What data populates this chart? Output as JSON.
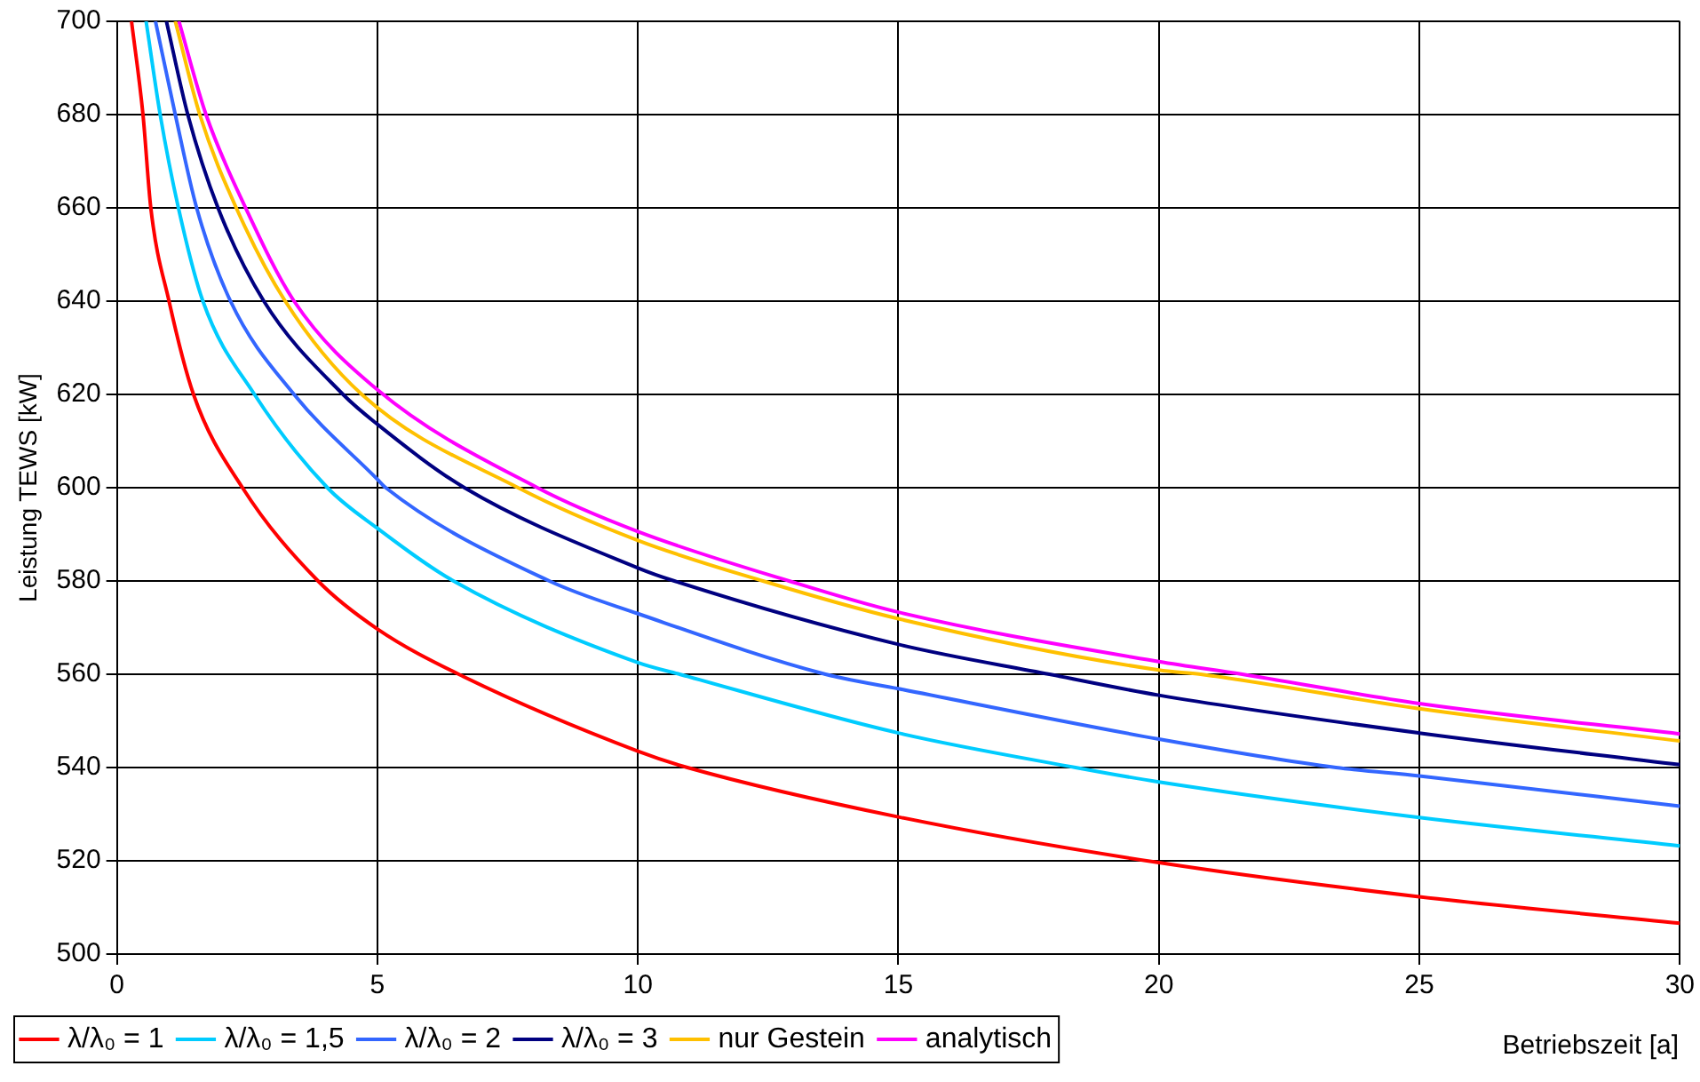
{
  "chart_data": {
    "type": "line",
    "xlabel": "Betriebszeit [a]",
    "ylabel": "Leistung TEWS [kW]",
    "xlim": [
      0,
      30
    ],
    "xticks": [
      0,
      5,
      10,
      15,
      20,
      25,
      30
    ],
    "ylim": [
      500,
      700
    ],
    "yticks": [
      500,
      520,
      540,
      560,
      580,
      600,
      620,
      640,
      660,
      680,
      700
    ],
    "grid": true,
    "legend": "bottom left",
    "marker": "none",
    "line_style": "solid",
    "series": [
      {
        "name": "λ/λ₀ = 1",
        "color": "#ff0000",
        "x": [
          0.28,
          0.5,
          0.65,
          1.0,
          1.47,
          2.41,
          3.86,
          5,
          6.56,
          10,
          10.95,
          15,
          20,
          25,
          30
        ],
        "values": [
          700,
          680,
          660,
          640,
          620,
          600,
          580,
          569.7,
          560,
          543.5,
          540,
          529.4,
          519.6,
          512.3,
          506.6
        ]
      },
      {
        "name": "λ/λ₀ = 1,5",
        "color": "#00ccff",
        "x": [
          0.56,
          0.83,
          1.18,
          1.65,
          2.64,
          4.04,
          5,
          6.46,
          10,
          10.8,
          15,
          18.4,
          20,
          25,
          30
        ],
        "values": [
          700,
          680,
          660,
          640,
          620,
          600,
          591.3,
          580,
          562.5,
          560,
          547.4,
          540,
          536.9,
          529.3,
          523.2
        ]
      },
      {
        "name": "λ/λ₀ = 2",
        "color": "#3366ff",
        "x": [
          0.74,
          1.12,
          1.53,
          2.18,
          3.4,
          5,
          5.16,
          8.3,
          10,
          13.6,
          15,
          20,
          23.4,
          25,
          30
        ],
        "values": [
          700,
          680,
          660,
          640,
          620,
          601.8,
          600,
          580,
          573,
          560,
          556.9,
          546.1,
          540,
          538.2,
          531.7
        ]
      },
      {
        "name": "λ/λ₀ = 3",
        "color": "#000080",
        "x": [
          0.95,
          1.36,
          1.94,
          2.82,
          4.34,
          5,
          6.67,
          10,
          10.7,
          15,
          17.9,
          20,
          25,
          30
        ],
        "values": [
          700,
          680,
          660,
          640,
          620,
          613.6,
          600,
          582.8,
          580,
          566.4,
          560,
          555.5,
          547.4,
          540.6
        ]
      },
      {
        "name": "nur Gestein",
        "color": "#ffc000",
        "x": [
          1.12,
          1.59,
          2.29,
          3.23,
          4.7,
          7.7,
          10,
          12.4,
          15,
          20,
          20.8,
          25,
          30
        ],
        "values": [
          700,
          680,
          660,
          640,
          620,
          600,
          588.7,
          580,
          571.9,
          560.9,
          560,
          552.6,
          545.7
        ]
      },
      {
        "name": "analytisch",
        "color": "#ff00ff",
        "x": [
          1.19,
          1.71,
          2.47,
          3.4,
          5,
          8.07,
          10,
          12.9,
          15,
          20,
          21.6,
          25,
          30
        ],
        "values": [
          700,
          680,
          660,
          640,
          621,
          600,
          590.6,
          580,
          573.3,
          562.7,
          560,
          553.7,
          547.2
        ]
      }
    ]
  }
}
